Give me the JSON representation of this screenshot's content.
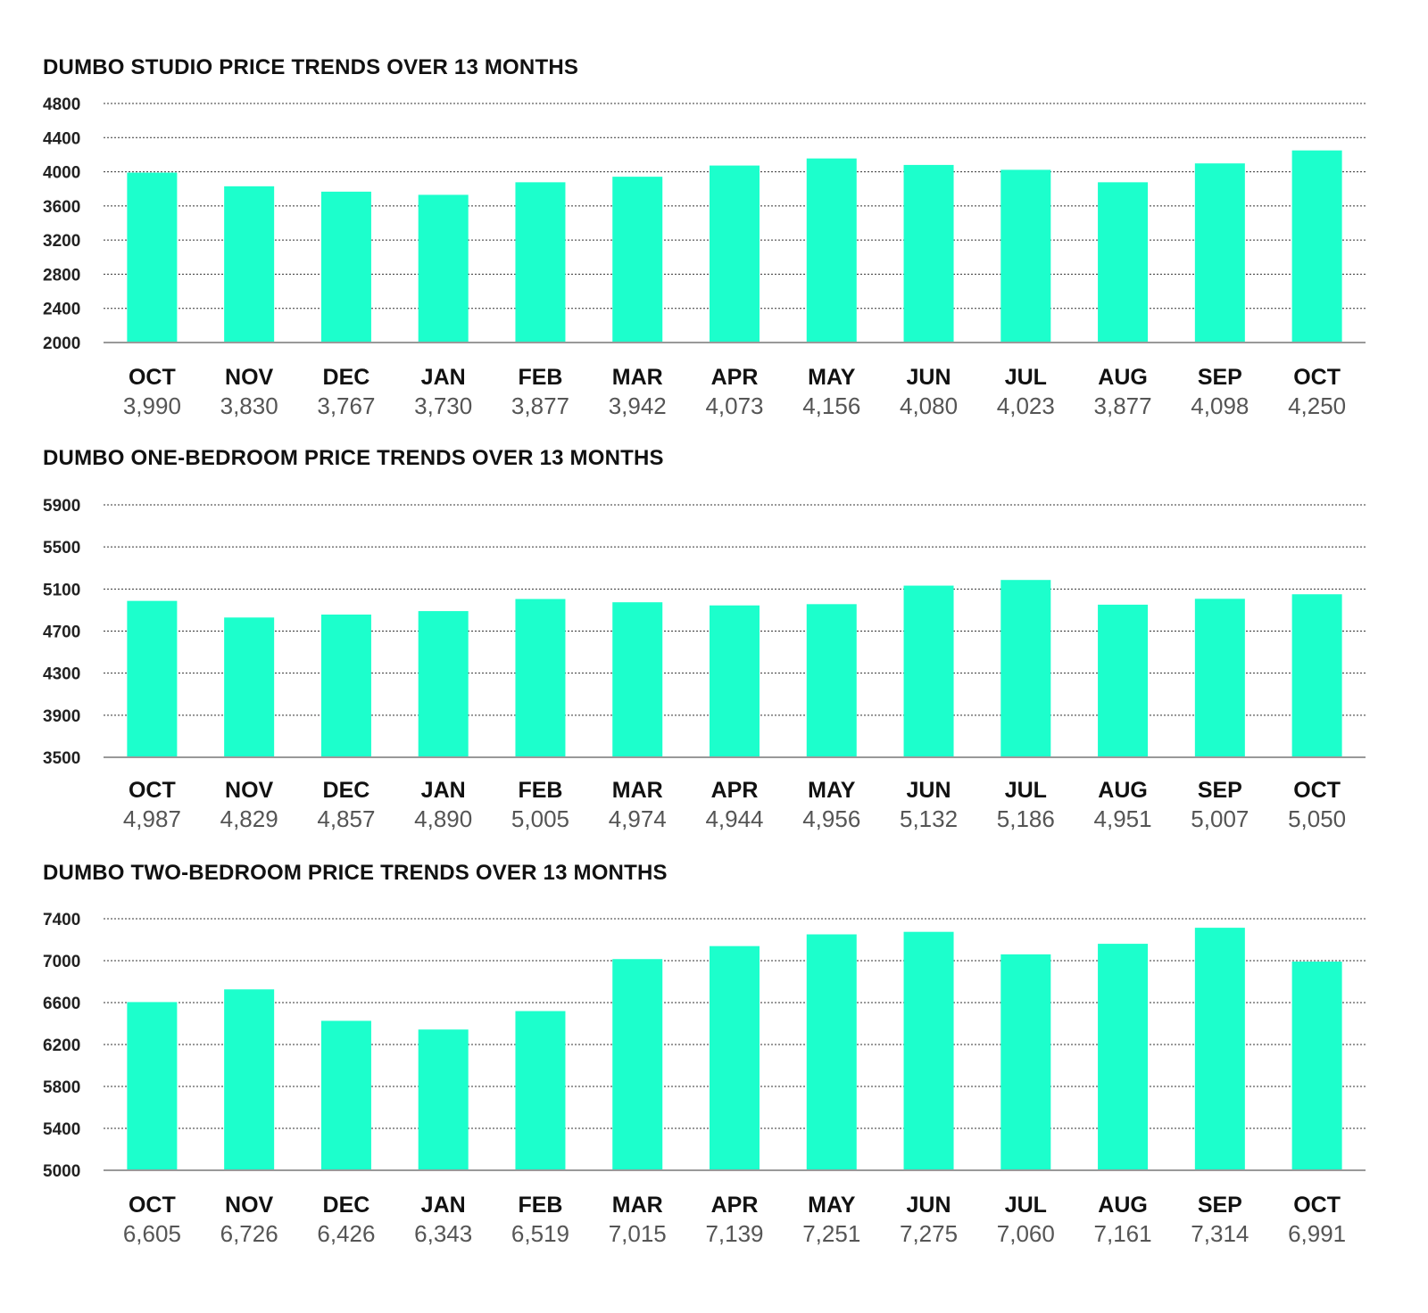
{
  "colors": {
    "bar": "#1cffcc",
    "grid": "#333333",
    "axis": "#999999"
  },
  "chart_data": [
    {
      "type": "bar",
      "title": "DUMBO STUDIO PRICE TRENDS OVER 13 MONTHS",
      "xlabel": "",
      "ylabel": "",
      "ylim": [
        2000,
        4800
      ],
      "yticks": [
        2000,
        2400,
        2800,
        3200,
        3600,
        4000,
        4400,
        4800
      ],
      "grid": true,
      "categories": [
        "OCT",
        "NOV",
        "DEC",
        "JAN",
        "FEB",
        "MAR",
        "APR",
        "MAY",
        "JUN",
        "JUL",
        "AUG",
        "SEP",
        "OCT"
      ],
      "values": [
        3990,
        3830,
        3767,
        3730,
        3877,
        3942,
        4073,
        4156,
        4080,
        4023,
        3877,
        4098,
        4250
      ],
      "value_labels": [
        "3,990",
        "3,830",
        "3,767",
        "3,730",
        "3,877",
        "3,942",
        "4,073",
        "4,156",
        "4,080",
        "4,023",
        "3,877",
        "4,098",
        "4,250"
      ]
    },
    {
      "type": "bar",
      "title": "DUMBO ONE-BEDROOM PRICE TRENDS OVER 13 MONTHS",
      "xlabel": "",
      "ylabel": "",
      "ylim": [
        3500,
        5900
      ],
      "yticks": [
        3500,
        3900,
        4300,
        4700,
        5100,
        5500,
        5900
      ],
      "grid": true,
      "categories": [
        "OCT",
        "NOV",
        "DEC",
        "JAN",
        "FEB",
        "MAR",
        "APR",
        "MAY",
        "JUN",
        "JUL",
        "AUG",
        "SEP",
        "OCT"
      ],
      "values": [
        4987,
        4829,
        4857,
        4890,
        5005,
        4974,
        4944,
        4956,
        5132,
        5186,
        4951,
        5007,
        5050
      ],
      "value_labels": [
        "4,987",
        "4,829",
        "4,857",
        "4,890",
        "5,005",
        "4,974",
        "4,944",
        "4,956",
        "5,132",
        "5,186",
        "4,951",
        "5,007",
        "5,050"
      ]
    },
    {
      "type": "bar",
      "title": "DUMBO TWO-BEDROOM PRICE TRENDS OVER 13 MONTHS",
      "xlabel": "",
      "ylabel": "",
      "ylim": [
        5000,
        7400
      ],
      "yticks": [
        5000,
        5400,
        5800,
        6200,
        6600,
        7000,
        7400
      ],
      "grid": true,
      "categories": [
        "OCT",
        "NOV",
        "DEC",
        "JAN",
        "FEB",
        "MAR",
        "APR",
        "MAY",
        "JUN",
        "JUL",
        "AUG",
        "SEP",
        "OCT"
      ],
      "values": [
        6605,
        6726,
        6426,
        6343,
        6519,
        7015,
        7139,
        7251,
        7275,
        7060,
        7161,
        7314,
        6991
      ],
      "value_labels": [
        "6,605",
        "6,726",
        "6,426",
        "6,343",
        "6,519",
        "7,015",
        "7,139",
        "7,251",
        "7,275",
        "7,060",
        "7,161",
        "7,314",
        "6,991"
      ]
    }
  ]
}
